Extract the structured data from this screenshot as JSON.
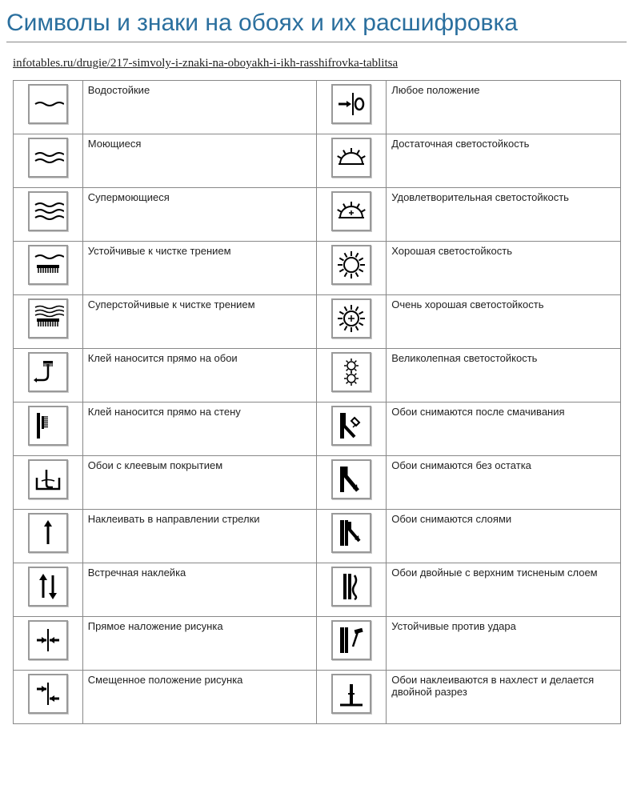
{
  "title": "Символы и знаки на обоях и их расшифровка",
  "source_url": "infotables.ru/drugie/217-simvoly-i-znaki-na-oboyakh-i-ikh-rasshifrovka-tablitsa",
  "colors": {
    "title": "#2a6f9e",
    "border": "#888888",
    "text": "#222222",
    "icon_stroke": "#000000"
  },
  "rows": [
    {
      "left_icon": "wave-1",
      "left_label": "Водостойкие",
      "right_icon": "arrow-zero",
      "right_label": "Любое положение"
    },
    {
      "left_icon": "wave-2",
      "left_label": "Моющиеся",
      "right_icon": "half-sun",
      "right_label": "Достаточная светостойкость"
    },
    {
      "left_icon": "wave-3",
      "left_label": "Супермоющиеся",
      "right_icon": "half-sun-plus",
      "right_label": "Удовлетворительная светостойкость"
    },
    {
      "left_icon": "brush-wave-1",
      "left_label": "Устойчивые к чистке трением",
      "right_icon": "sun",
      "right_label": "Хорошая светостойкость"
    },
    {
      "left_icon": "brush-wave-3",
      "left_label": "Суперстойчивые к чистке трением",
      "right_icon": "sun-plus",
      "right_label": "Очень хорошая светостойкость"
    },
    {
      "left_icon": "glue-wallpaper",
      "left_label": "Клей наносится прямо на обои",
      "right_icon": "double-sun",
      "right_label": "Великолепная светостойкость"
    },
    {
      "left_icon": "glue-wall",
      "left_label": "Клей наносится прямо на стену",
      "right_icon": "peel-wet",
      "right_label": "Обои снимаются после смачивания"
    },
    {
      "left_icon": "water-tray",
      "left_label": "Обои с клеевым покрытием",
      "right_icon": "peel-full",
      "right_label": "Обои снимаются без остатка"
    },
    {
      "left_icon": "arrow-up",
      "left_label": "Наклеивать в направлении стрелки",
      "right_icon": "peel-layers",
      "right_label": "Обои снимаются слоями"
    },
    {
      "left_icon": "arrows-opposed",
      "left_label": "Встречная наклейка",
      "right_icon": "double-emboss",
      "right_label": " Обои двойные с верхним тисненым слоем"
    },
    {
      "left_icon": "align-straight",
      "left_label": "Прямое наложение рисунка",
      "right_icon": "hammer",
      "right_label": " Устойчивые против удара"
    },
    {
      "left_icon": "align-offset",
      "left_label": "Смещенное положение рисунка",
      "right_icon": "overlap-cut",
      "right_label": " Обои наклеиваются в нахлест и делается двойной разрез"
    }
  ]
}
